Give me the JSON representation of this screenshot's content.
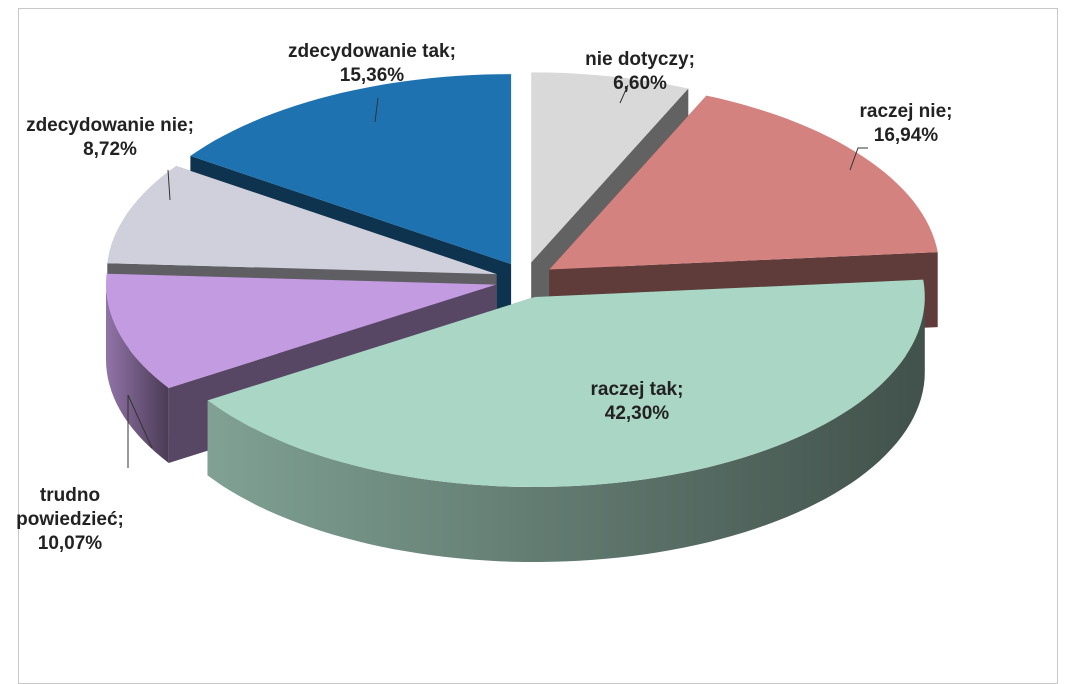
{
  "chart_data": {
    "type": "pie3d",
    "values": [
      6.6,
      16.94,
      42.3,
      10.07,
      8.72,
      15.36
    ],
    "value_labels": [
      "nie dotyczy; 6,60%",
      "raczej nie; 16,94%",
      "raczej tak; 42,30%",
      "trudno powiedzieć; 10,07%",
      "zdecydowanie nie; 8,72%",
      "zdecydowanie tak; 15,36%"
    ],
    "colors": [
      "#d9d9d9",
      "#d4827f",
      "#aad6c5",
      "#c39be0",
      "#d0d0dc",
      "#1f72b0"
    ]
  }
}
